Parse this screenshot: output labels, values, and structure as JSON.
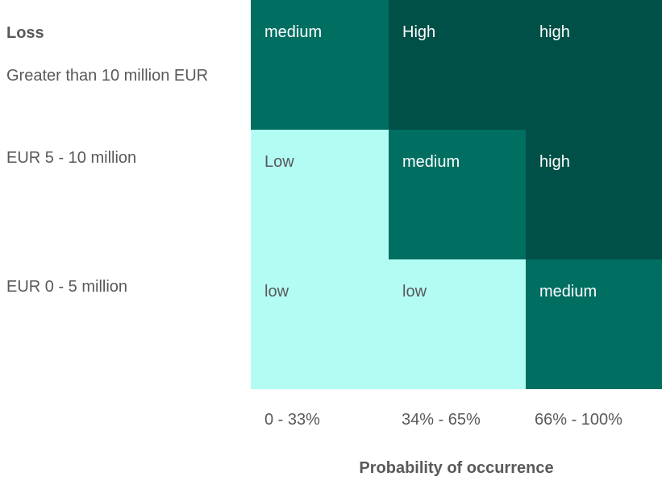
{
  "chart_data": {
    "type": "heatmap",
    "title": "",
    "ylabel": "Loss",
    "xlabel": "Probability of occurrence",
    "rows": [
      "Greater than 10 million EUR",
      "EUR 5 - 10 million",
      "EUR 0 - 5 million"
    ],
    "columns": [
      "0 - 33%",
      "34% - 65%",
      "66% - 100%"
    ],
    "cells": [
      [
        "medium",
        "High",
        "high"
      ],
      [
        "Low",
        "medium",
        "high"
      ],
      [
        "low",
        "low",
        "medium"
      ]
    ],
    "level_colors": {
      "low": "#b3fcf4",
      "medium": "#006e61",
      "high": "#005047"
    },
    "text_colors": {
      "low": "#595959",
      "medium": "#ffffff",
      "high": "#ffffff"
    }
  }
}
